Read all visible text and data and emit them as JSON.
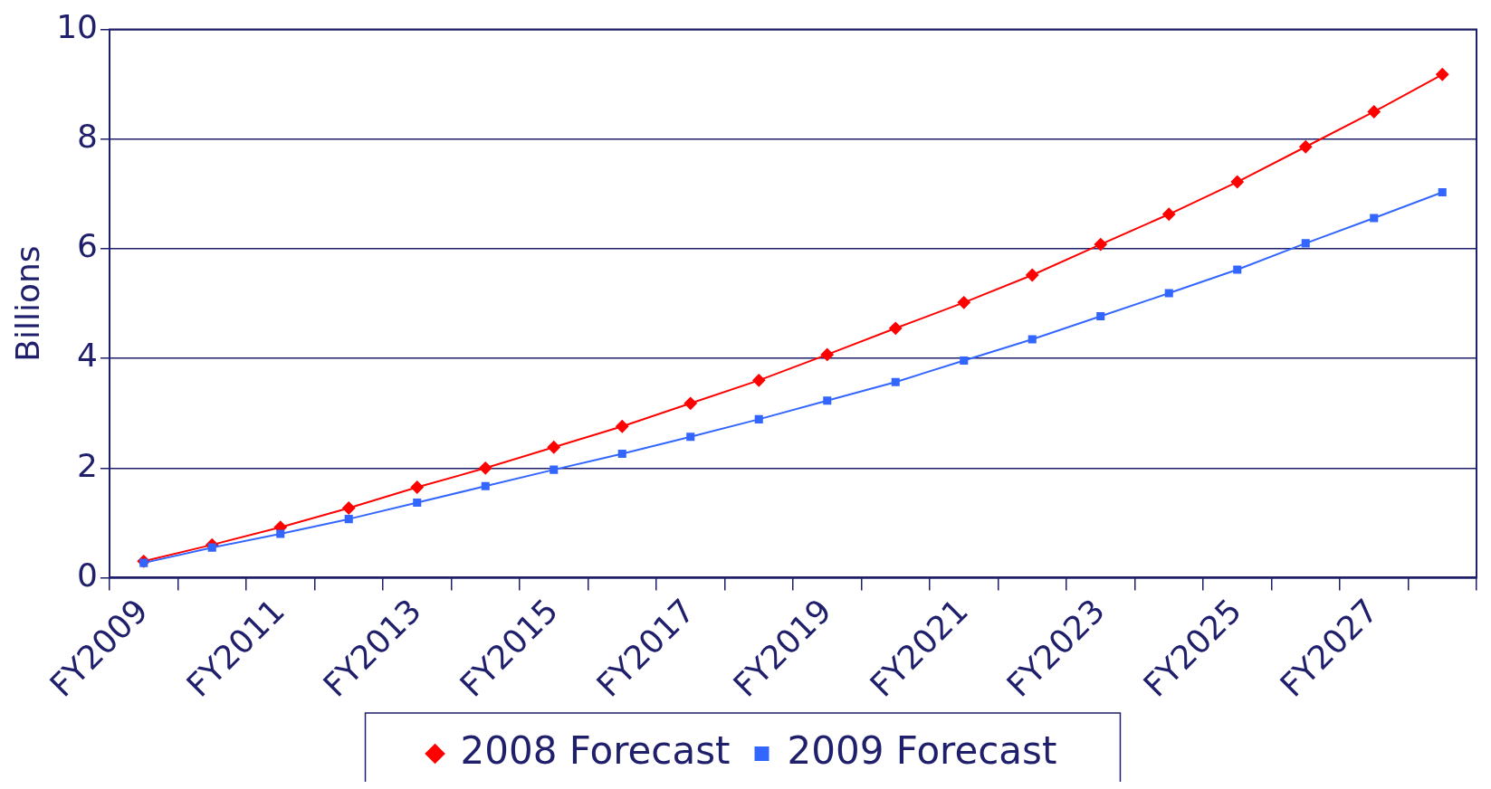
{
  "chart_data": {
    "type": "line",
    "ylabel": "Billions",
    "categories": [
      "FY2009",
      null,
      "FY2011",
      null,
      "FY2013",
      null,
      "FY2015",
      null,
      "FY2017",
      null,
      "FY2019",
      null,
      "FY2021",
      null,
      "FY2023",
      null,
      "FY2025",
      null,
      "FY2027",
      null
    ],
    "series": [
      {
        "name": "2008 Forecast",
        "color": "#ff0000",
        "marker": "diamond",
        "values": [
          0.3,
          0.6,
          0.92,
          1.27,
          1.65,
          2.0,
          2.38,
          2.76,
          3.18,
          3.6,
          4.07,
          4.55,
          5.02,
          5.52,
          6.08,
          6.63,
          7.22,
          7.86,
          8.5,
          9.18
        ]
      },
      {
        "name": "2009 Forecast",
        "color": "#3366ff",
        "marker": "square",
        "values": [
          0.27,
          0.55,
          0.8,
          1.07,
          1.37,
          1.67,
          1.97,
          2.26,
          2.57,
          2.89,
          3.23,
          3.57,
          3.96,
          4.35,
          4.77,
          5.19,
          5.62,
          6.1,
          6.56,
          7.03
        ]
      }
    ],
    "ylim": [
      0,
      10
    ],
    "yticks": [
      0,
      2,
      4,
      6,
      8,
      10
    ],
    "grid": "y",
    "legend": "bottom",
    "line_style": "solid"
  }
}
